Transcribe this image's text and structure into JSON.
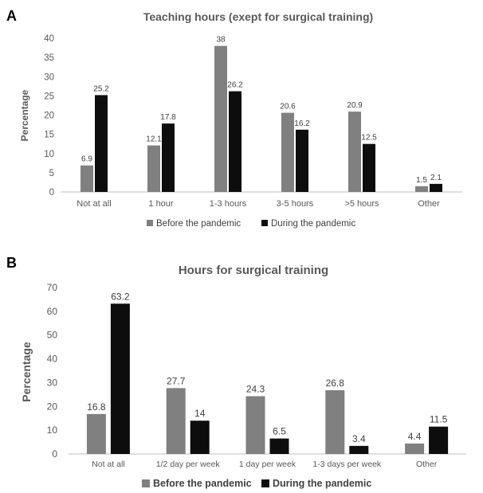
{
  "chart_data": [
    {
      "panel": "A",
      "type": "bar",
      "title": "Teaching hours (exept for surgical training)",
      "xlabel": "",
      "ylabel": "Percentage",
      "ylim": [
        0,
        40
      ],
      "yticks": [
        "0",
        "5",
        "10",
        "15",
        "20",
        "25",
        "30",
        "35",
        "40"
      ],
      "categories": [
        "Not at all",
        "1 hour",
        "1-3 hours",
        "3-5 hours",
        ">5 hours",
        "Other"
      ],
      "series": [
        {
          "name": "Before the pandemic",
          "color": "#808080",
          "values": [
            6.9,
            12.1,
            38,
            20.6,
            20.9,
            1.5
          ],
          "labels": [
            "6.9",
            "12.1",
            "38",
            "20.6",
            "20.9",
            "1.5"
          ]
        },
        {
          "name": "During the pandemic",
          "color": "#0d0d0d",
          "values": [
            25.2,
            17.8,
            26.2,
            16.2,
            12.5,
            2.1
          ],
          "labels": [
            "25.2",
            "17.8",
            "26.2",
            "16.2",
            "12.5",
            "2.1"
          ]
        }
      ],
      "grid": false,
      "legend": "bottom"
    },
    {
      "panel": "B",
      "type": "bar",
      "title": "Hours for surgical training",
      "xlabel": "",
      "ylabel": "Percentage",
      "ylim": [
        0,
        70
      ],
      "yticks": [
        "0",
        "10",
        "20",
        "30",
        "40",
        "50",
        "60",
        "70"
      ],
      "categories": [
        "Not at all",
        "1/2 day per week",
        "1 day per week",
        "1-3 days per week",
        "Other"
      ],
      "series": [
        {
          "name": "Before the pandemic",
          "color": "#808080",
          "values": [
            16.8,
            27.7,
            24.3,
            26.8,
            4.4
          ],
          "labels": [
            "16.8",
            "27.7",
            "24.3",
            "26.8",
            "4.4"
          ]
        },
        {
          "name": "During the pandemic",
          "color": "#0d0d0d",
          "values": [
            63.2,
            14,
            6.5,
            3.4,
            11.5
          ],
          "labels": [
            "63.2",
            "14",
            "6.5",
            "3.4",
            "11.5"
          ]
        }
      ],
      "grid": false,
      "legend": "bottom"
    }
  ]
}
